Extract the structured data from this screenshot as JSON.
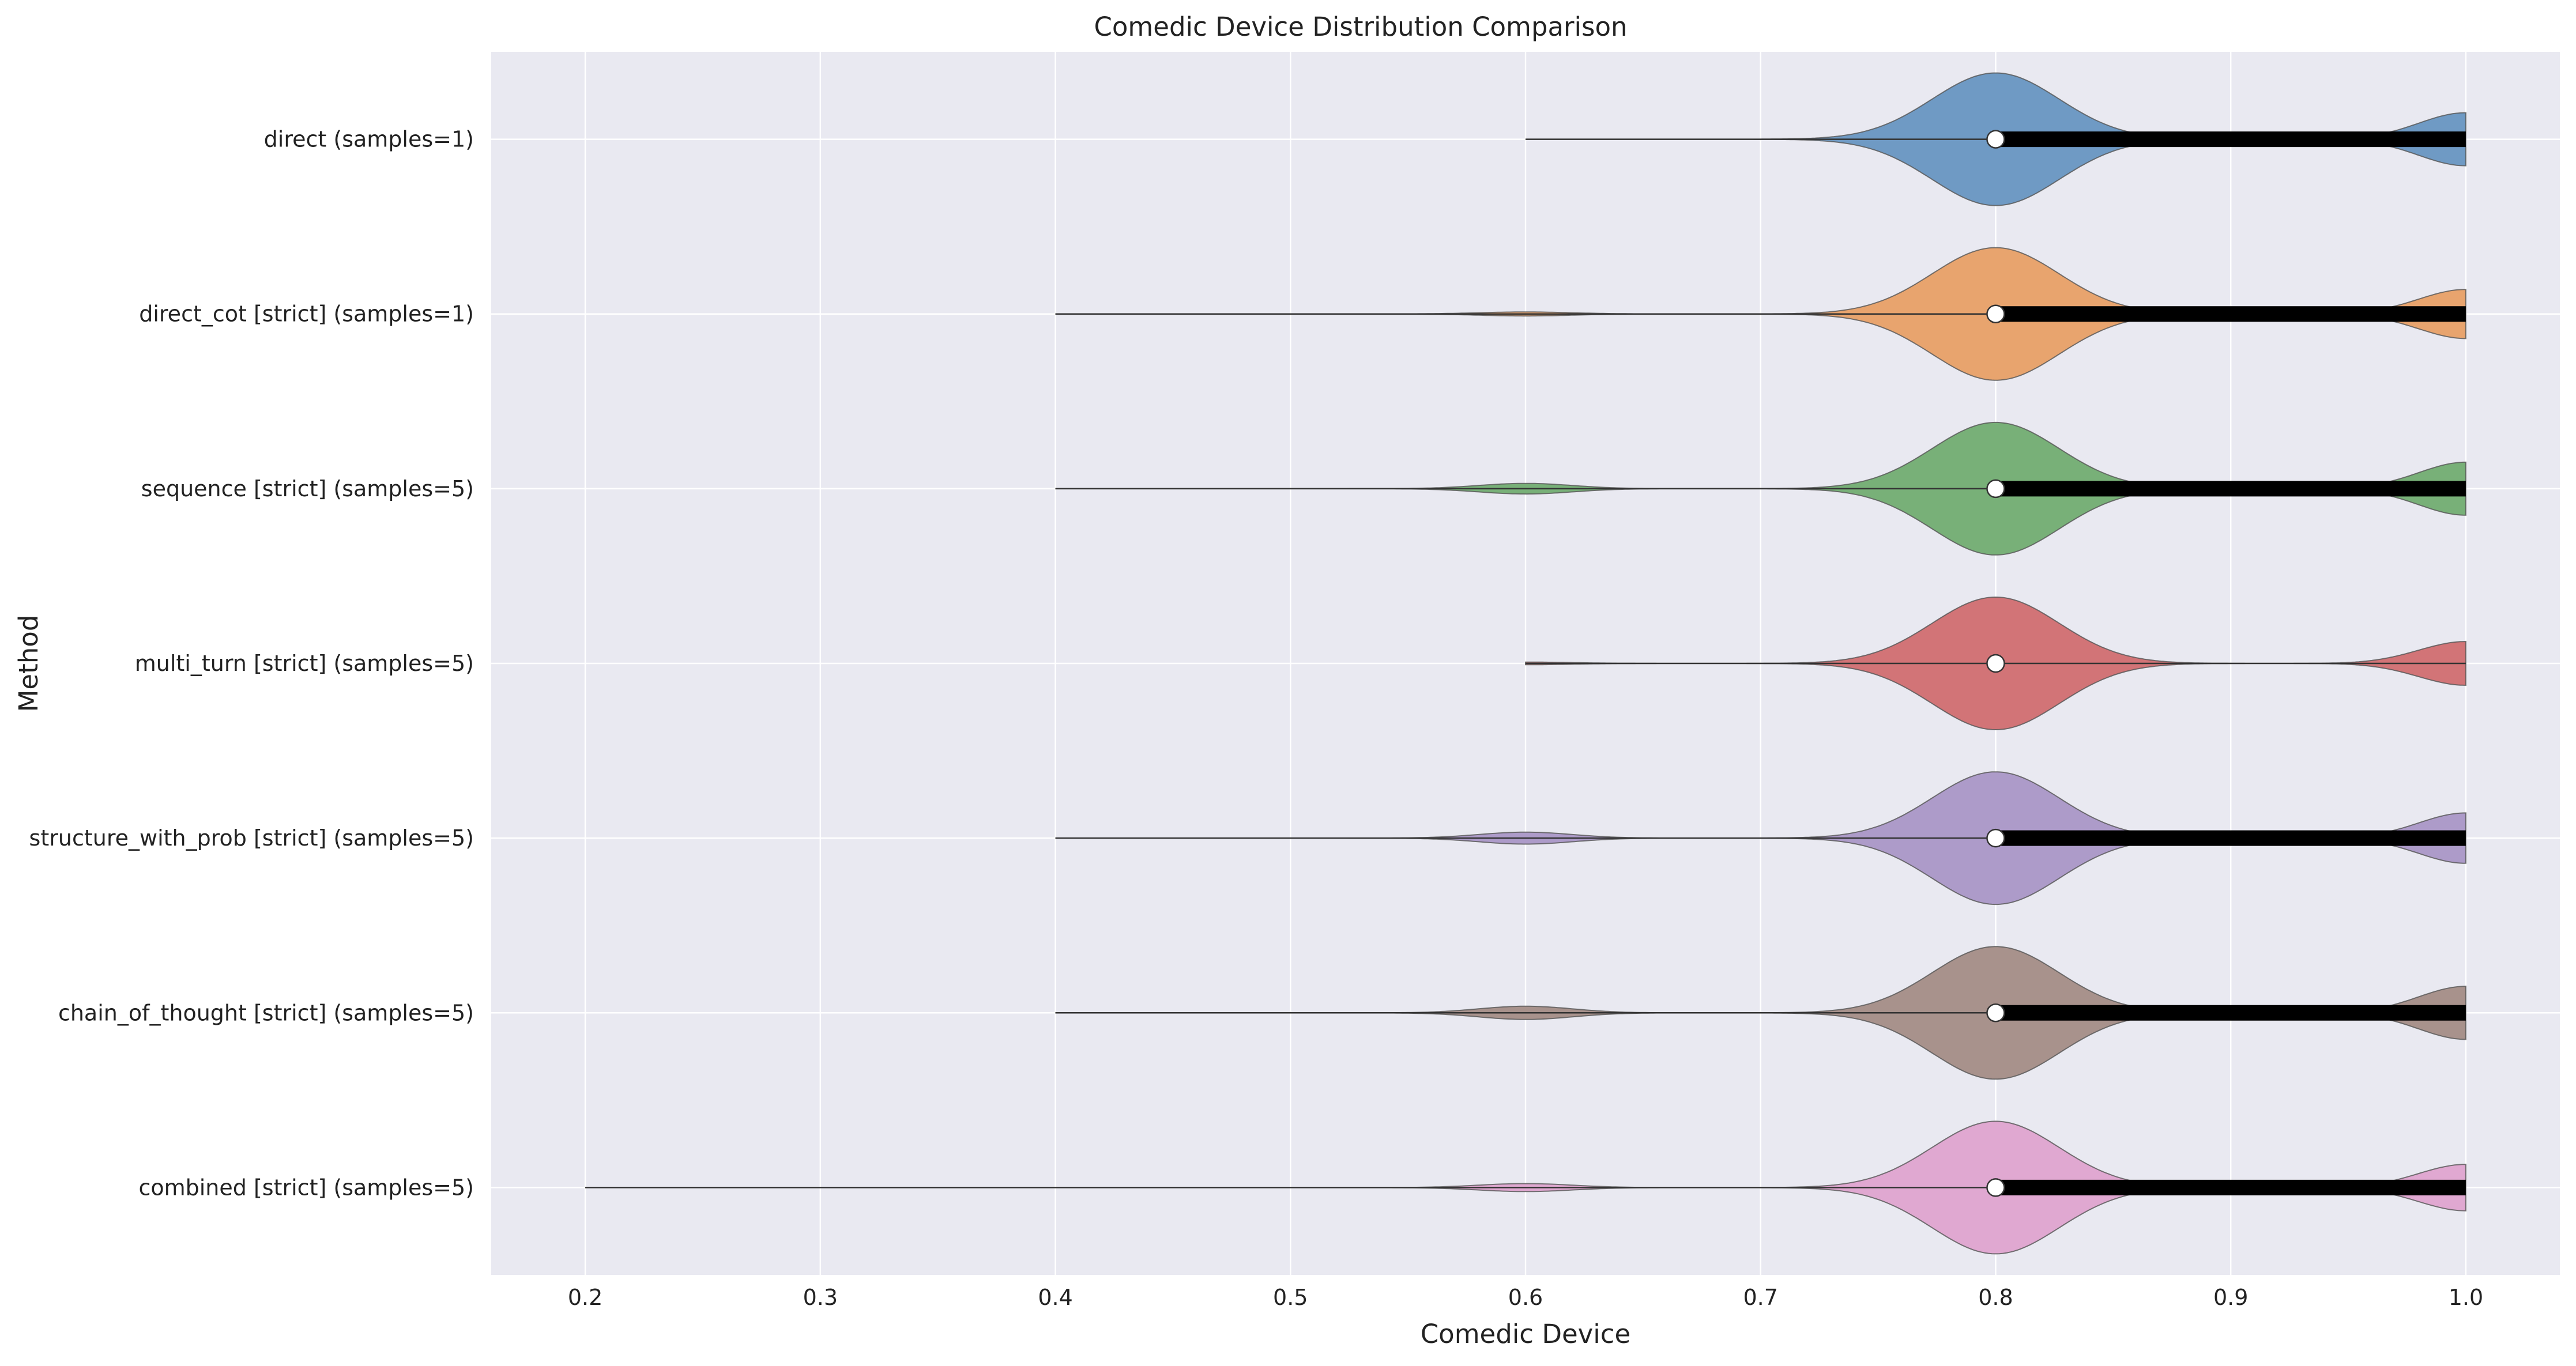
{
  "chart_data": {
    "type": "violin",
    "orientation": "horizontal",
    "title": "Comedic Device Distribution Comparison",
    "xlabel": "Comedic Device",
    "ylabel": "Method",
    "xlim": [
      0.16,
      1.04
    ],
    "xticks": [
      0.2,
      0.3,
      0.4,
      0.5,
      0.6,
      0.7,
      0.8,
      0.9,
      1.0
    ],
    "xtick_labels": [
      "0.2",
      "0.3",
      "0.4",
      "0.5",
      "0.6",
      "0.7",
      "0.8",
      "0.9",
      "1.0"
    ],
    "grid": true,
    "background": "#e9e9f1",
    "series": [
      {
        "name": "direct (samples=1)",
        "color": "#6f9ac4",
        "min": 0.6,
        "max": 1.0,
        "q1": 0.8,
        "median": 0.8,
        "q3": 1.0,
        "density": [
          [
            0.6,
            0.0
          ],
          [
            0.7,
            0.0
          ],
          [
            0.8,
            1.0
          ],
          [
            0.9,
            0.0
          ],
          [
            1.0,
            0.4
          ]
        ]
      },
      {
        "name": "direct_cot [strict] (samples=1)",
        "color": "#e8a46e",
        "min": 0.4,
        "max": 1.0,
        "q1": 0.8,
        "median": 0.8,
        "q3": 1.0,
        "density": [
          [
            0.4,
            0.0
          ],
          [
            0.6,
            0.03
          ],
          [
            0.8,
            1.0
          ],
          [
            0.9,
            0.0
          ],
          [
            1.0,
            0.37
          ]
        ]
      },
      {
        "name": "sequence [strict] (samples=5)",
        "color": "#78b078",
        "min": 0.4,
        "max": 1.0,
        "q1": 0.8,
        "median": 0.8,
        "q3": 1.0,
        "density": [
          [
            0.4,
            0.0
          ],
          [
            0.6,
            0.08
          ],
          [
            0.8,
            1.0
          ],
          [
            0.9,
            0.0
          ],
          [
            1.0,
            0.4
          ]
        ]
      },
      {
        "name": "multi_turn [strict] (samples=5)",
        "color": "#d27477",
        "min": 0.6,
        "max": 1.0,
        "q1": 0.8,
        "median": 0.8,
        "q3": 0.8,
        "density": [
          [
            0.6,
            0.02
          ],
          [
            0.8,
            1.0
          ],
          [
            0.9,
            0.0
          ],
          [
            1.0,
            0.33
          ]
        ]
      },
      {
        "name": "structure_with_prob [strict] (samples=5)",
        "color": "#ad9bc9",
        "min": 0.4,
        "max": 1.0,
        "q1": 0.8,
        "median": 0.8,
        "q3": 1.0,
        "density": [
          [
            0.4,
            0.0
          ],
          [
            0.6,
            0.09
          ],
          [
            0.8,
            1.0
          ],
          [
            0.9,
            0.0
          ],
          [
            1.0,
            0.38
          ]
        ]
      },
      {
        "name": "chain_of_thought [strict] (samples=5)",
        "color": "#a8928c",
        "min": 0.4,
        "max": 1.0,
        "q1": 0.8,
        "median": 0.8,
        "q3": 1.0,
        "density": [
          [
            0.4,
            0.0
          ],
          [
            0.6,
            0.1
          ],
          [
            0.8,
            1.0
          ],
          [
            0.9,
            0.0
          ],
          [
            1.0,
            0.4
          ]
        ]
      },
      {
        "name": "combined [strict] (samples=5)",
        "color": "#e0a8d1",
        "min": 0.2,
        "max": 1.0,
        "q1": 0.8,
        "median": 0.8,
        "q3": 1.0,
        "density": [
          [
            0.2,
            0.0
          ],
          [
            0.6,
            0.06
          ],
          [
            0.8,
            1.0
          ],
          [
            0.9,
            0.0
          ],
          [
            1.0,
            0.35
          ]
        ]
      }
    ]
  }
}
